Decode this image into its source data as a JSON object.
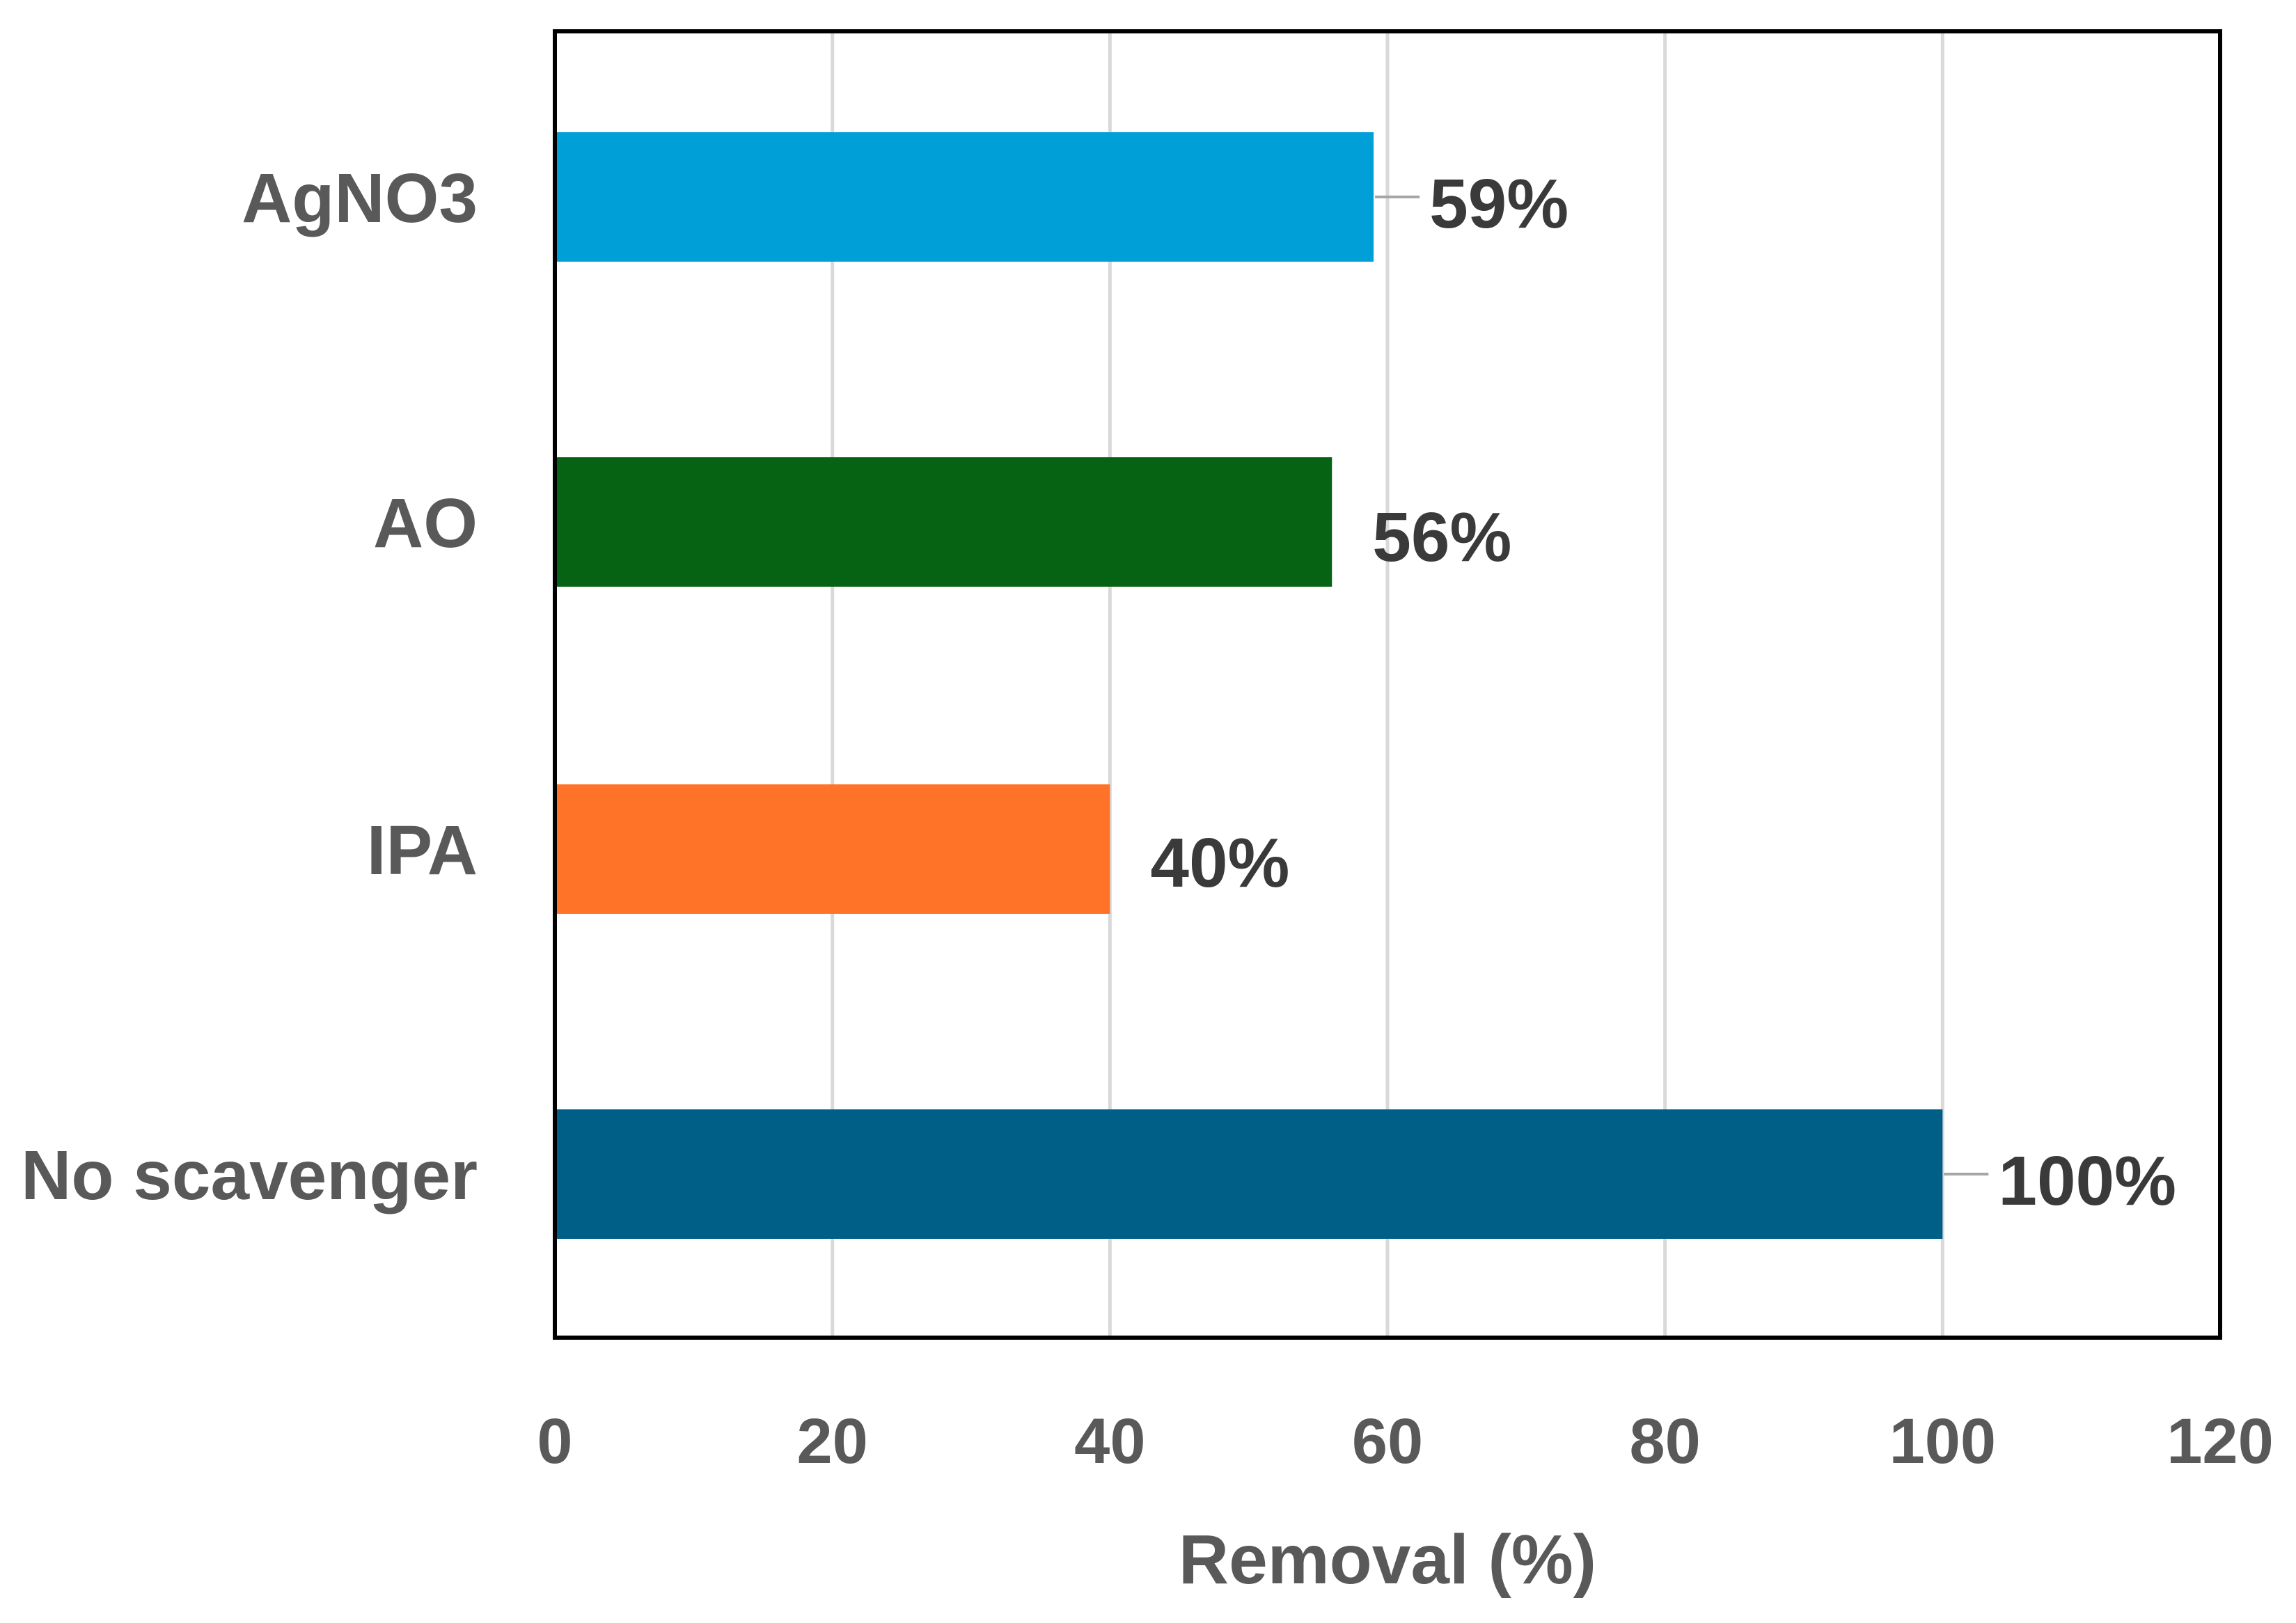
{
  "chart_data": {
    "type": "bar",
    "orientation": "horizontal",
    "title": "",
    "xlabel": "Removal (%)",
    "ylabel": "",
    "categories": [
      "AgNO3",
      "AO",
      "IPA",
      "No scavenger"
    ],
    "values": [
      59,
      56,
      40,
      100
    ],
    "data_labels": [
      "59%",
      "56%",
      "40%",
      "100%"
    ],
    "colors": [
      "#009FD7",
      "#066314",
      "#FF7328",
      "#005F86"
    ],
    "xlim": [
      0,
      120
    ],
    "xticks": [
      0,
      20,
      40,
      60,
      80,
      100,
      120
    ],
    "grid": "vertical",
    "legend": "none"
  }
}
